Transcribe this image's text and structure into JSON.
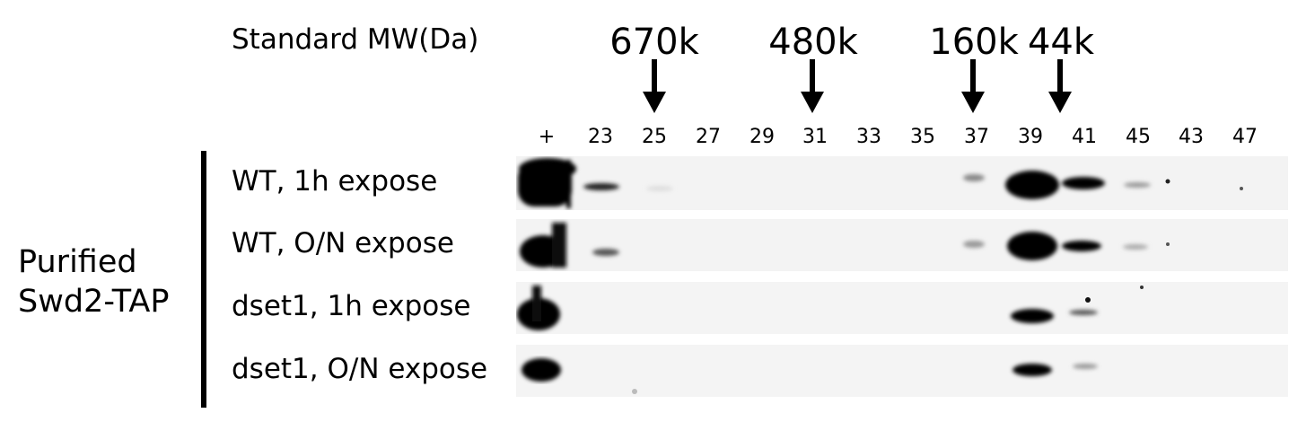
{
  "header": {
    "standard_label": "Standard MW(Da)"
  },
  "markers": [
    {
      "label": "670k"
    },
    {
      "label": "480k"
    },
    {
      "label": "160k"
    },
    {
      "label": "44k"
    }
  ],
  "lanes": [
    "+",
    "23",
    "25",
    "27",
    "29",
    "31",
    "33",
    "35",
    "37",
    "39",
    "41",
    "45",
    "43",
    "47"
  ],
  "conditions": [
    {
      "label": "WT, 1h expose"
    },
    {
      "label": "WT, O/N expose"
    },
    {
      "label": "dset1, 1h expose"
    },
    {
      "label": "dset1, O/N expose"
    }
  ],
  "sample": {
    "line1": "Purified",
    "line2": "Swd2-TAP"
  },
  "colors": {
    "band": "#000000",
    "membrane": "#f4f4f4",
    "background": "#ffffff"
  }
}
